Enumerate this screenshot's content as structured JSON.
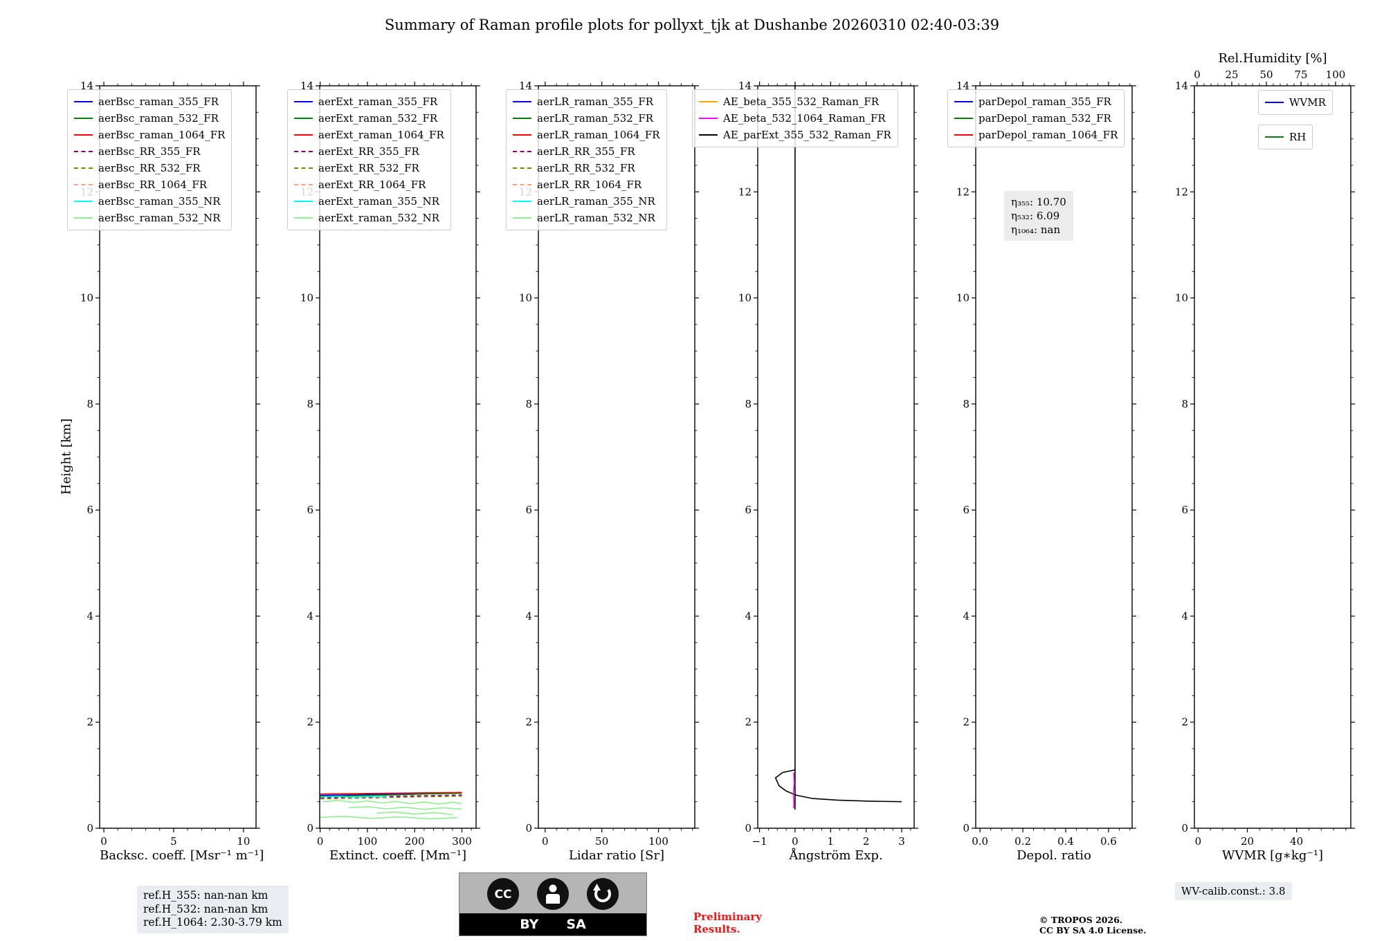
{
  "title": "Summary of Raman profile plots for pollyxt_tjk at Dushanbe 20260310 02:40-03:39",
  "footer": {
    "ref_lines": [
      "ref.H_355: nan-nan km",
      "ref.H_532: nan-nan km",
      "ref.H_1064: 2.30-3.79 km"
    ],
    "preliminary": [
      "Preliminary",
      "Results."
    ],
    "copyright": [
      "© TROPOS 2026.",
      "CC BY SA 4.0 License."
    ],
    "wv_calib": "WV-calib.const.: 3.8",
    "cc_badge": {
      "cc": "CC",
      "by": "BY",
      "sa": "SA"
    }
  },
  "chart_data": [
    {
      "name": "backscatter",
      "type": "line",
      "xlabel": "Backsc. coeff. [Msr⁻¹ m⁻¹]",
      "ylabel": "Height [km]",
      "xlim": [
        -0.3,
        10.9
      ],
      "ylim": [
        0,
        14
      ],
      "xticks": [
        0,
        5,
        10
      ],
      "xticklabels": [
        "0",
        "5",
        "10"
      ],
      "yticks": [
        0,
        2,
        4,
        6,
        8,
        10,
        12,
        14
      ],
      "yticklabels": [
        "0",
        "2",
        "4",
        "6",
        "8",
        "10",
        "12",
        "14"
      ],
      "xminor": 1,
      "yminor": 0.5,
      "legend": [
        {
          "label": "aerBsc_raman_355_FR",
          "color": "#0000ff",
          "dash": false
        },
        {
          "label": "aerBsc_raman_532_FR",
          "color": "#008000",
          "dash": false
        },
        {
          "label": "aerBsc_raman_1064_FR",
          "color": "#ff0000",
          "dash": false
        },
        {
          "label": "aerBsc_RR_355_FR",
          "color": "#800080",
          "dash": true
        },
        {
          "label": "aerBsc_RR_532_FR",
          "color": "#808000",
          "dash": true
        },
        {
          "label": "aerBsc_RR_1064_FR",
          "color": "#ffa07a",
          "dash": true
        },
        {
          "label": "aerBsc_raman_355_NR",
          "color": "#00ffff",
          "dash": false
        },
        {
          "label": "aerBsc_raman_532_NR",
          "color": "#90ee90",
          "dash": false
        }
      ],
      "series": []
    },
    {
      "name": "extinction",
      "type": "line",
      "xlabel": "Extinct. coeff. [Mm⁻¹]",
      "xlim": [
        -1,
        330
      ],
      "ylim": [
        0,
        14
      ],
      "xticks": [
        0,
        100,
        200,
        300
      ],
      "xticklabels": [
        "0",
        "100",
        "200",
        "300"
      ],
      "yticks": [
        0,
        2,
        4,
        6,
        8,
        10,
        12,
        14
      ],
      "yticklabels": [
        "0",
        "2",
        "4",
        "6",
        "8",
        "10",
        "12",
        "14"
      ],
      "xminor": 20,
      "yminor": 0.5,
      "legend": [
        {
          "label": "aerExt_raman_355_FR",
          "color": "#0000ff",
          "dash": false
        },
        {
          "label": "aerExt_raman_532_FR",
          "color": "#008000",
          "dash": false
        },
        {
          "label": "aerExt_raman_1064_FR",
          "color": "#ff0000",
          "dash": false
        },
        {
          "label": "aerExt_RR_355_FR",
          "color": "#800080",
          "dash": true
        },
        {
          "label": "aerExt_RR_532_FR",
          "color": "#808000",
          "dash": true
        },
        {
          "label": "aerExt_RR_1064_FR",
          "color": "#ffa07a",
          "dash": true
        },
        {
          "label": "aerExt_raman_355_NR",
          "color": "#00ffff",
          "dash": false
        },
        {
          "label": "aerExt_raman_532_NR",
          "color": "#90ee90",
          "dash": false
        }
      ],
      "series": [
        {
          "name": "aerExt_raman_355_FR",
          "color": "#0000ff",
          "dash": false,
          "points": [
            [
              0,
              0.62
            ],
            [
              75,
              0.63
            ],
            [
              150,
              0.645
            ],
            [
              225,
              0.655
            ],
            [
              300,
              0.67
            ]
          ]
        },
        {
          "name": "aerExt_raman_532_FR",
          "color": "#008000",
          "dash": false,
          "points": [
            [
              0,
              0.6
            ],
            [
              80,
              0.615
            ],
            [
              160,
              0.63
            ],
            [
              240,
              0.65
            ],
            [
              300,
              0.66
            ]
          ]
        },
        {
          "name": "aerExt_raman_1064_FR",
          "color": "#ff0000",
          "dash": false,
          "points": [
            [
              0,
              0.645
            ],
            [
              100,
              0.655
            ],
            [
              200,
              0.665
            ],
            [
              300,
              0.675
            ]
          ]
        },
        {
          "name": "aerExt_RR_355_FR",
          "color": "#800080",
          "dash": true,
          "points": [
            [
              0,
              0.575
            ],
            [
              100,
              0.59
            ],
            [
              200,
              0.61
            ],
            [
              300,
              0.625
            ]
          ]
        },
        {
          "name": "aerExt_RR_532_FR",
          "color": "#808000",
          "dash": true,
          "points": [
            [
              0,
              0.555
            ],
            [
              100,
              0.57
            ],
            [
              200,
              0.59
            ],
            [
              300,
              0.605
            ]
          ]
        },
        {
          "name": "aerExt_raman_355_NR",
          "color": "#00ffff",
          "dash": false,
          "points": [
            [
              0,
              0.59
            ],
            [
              35,
              0.6
            ],
            [
              70,
              0.585
            ],
            [
              110,
              0.6
            ],
            [
              140,
              0.59
            ]
          ]
        },
        {
          "name": "aerExt_raman_532_NR",
          "color": "#90ee90",
          "dash": false,
          "points": [
            [
              5,
              0.5
            ],
            [
              40,
              0.525
            ],
            [
              70,
              0.485
            ],
            [
              100,
              0.515
            ],
            [
              130,
              0.475
            ],
            [
              160,
              0.505
            ],
            [
              190,
              0.465
            ],
            [
              220,
              0.495
            ],
            [
              250,
              0.455
            ],
            [
              280,
              0.49
            ],
            [
              300,
              0.465
            ]
          ]
        },
        {
          "name": "aerExt_raman_532_NR",
          "color": "#90ee90",
          "dash": false,
          "points": [
            [
              60,
              0.385
            ],
            [
              100,
              0.405
            ],
            [
              140,
              0.365
            ],
            [
              180,
              0.395
            ],
            [
              220,
              0.355
            ],
            [
              260,
              0.385
            ],
            [
              300,
              0.36
            ]
          ]
        },
        {
          "name": "aerExt_raman_532_NR",
          "color": "#90ee90",
          "dash": false,
          "points": [
            [
              120,
              0.285
            ],
            [
              160,
              0.305
            ],
            [
              200,
              0.265
            ],
            [
              240,
              0.295
            ],
            [
              280,
              0.255
            ]
          ]
        },
        {
          "name": "aerExt_raman_532_NR",
          "color": "#90ee90",
          "dash": false,
          "points": [
            [
              0,
              0.205
            ],
            [
              50,
              0.225
            ],
            [
              110,
              0.185
            ],
            [
              170,
              0.215
            ],
            [
              230,
              0.175
            ],
            [
              290,
              0.2
            ]
          ]
        }
      ]
    },
    {
      "name": "lidar_ratio",
      "type": "line",
      "xlabel": "Lidar ratio [Sr]",
      "xlim": [
        -6,
        132
      ],
      "ylim": [
        0,
        14
      ],
      "xticks": [
        0,
        50,
        100
      ],
      "xticklabels": [
        "0",
        "50",
        "100"
      ],
      "yticks": [
        0,
        2,
        4,
        6,
        8,
        10,
        12,
        14
      ],
      "yticklabels": [
        "0",
        "2",
        "4",
        "6",
        "8",
        "10",
        "12",
        "14"
      ],
      "xminor": 10,
      "yminor": 0.5,
      "legend": [
        {
          "label": "aerLR_raman_355_FR",
          "color": "#0000ff",
          "dash": false
        },
        {
          "label": "aerLR_raman_532_FR",
          "color": "#008000",
          "dash": false
        },
        {
          "label": "aerLR_raman_1064_FR",
          "color": "#ff0000",
          "dash": false
        },
        {
          "label": "aerLR_RR_355_FR",
          "color": "#800080",
          "dash": true
        },
        {
          "label": "aerLR_RR_532_FR",
          "color": "#808000",
          "dash": true
        },
        {
          "label": "aerLR_RR_1064_FR",
          "color": "#ffa07a",
          "dash": true
        },
        {
          "label": "aerLR_raman_355_NR",
          "color": "#00ffff",
          "dash": false
        },
        {
          "label": "aerLR_raman_532_NR",
          "color": "#90ee90",
          "dash": false
        }
      ],
      "series": []
    },
    {
      "name": "angstrom",
      "type": "line",
      "xlabel": "Ångström Exp.",
      "xlim": [
        -1.05,
        3.35
      ],
      "ylim": [
        0,
        14
      ],
      "xticks": [
        -1,
        0,
        1,
        2,
        3
      ],
      "xticklabels": [
        "−1",
        "0",
        "1",
        "2",
        "3"
      ],
      "yticks": [
        0,
        2,
        4,
        6,
        8,
        10,
        12,
        14
      ],
      "yticklabels": [
        "0",
        "2",
        "4",
        "6",
        "8",
        "10",
        "12",
        "14"
      ],
      "xminor": 0.25,
      "yminor": 0.5,
      "legend": [
        {
          "label": "AE_beta_355_532_Raman_FR",
          "color": "#ffa500",
          "dash": false
        },
        {
          "label": "AE_beta_532_1064_Raman_FR",
          "color": "#ff00ff",
          "dash": false
        },
        {
          "label": "AE_parExt_355_532_Raman_FR",
          "color": "#000000",
          "dash": false
        }
      ],
      "series": [
        {
          "name": "AE_parExt_355_532_Raman_FR",
          "color": "#000000",
          "dash": false,
          "points": [
            [
              0,
              14
            ],
            [
              0,
              0.35
            ]
          ]
        },
        {
          "name": "AE_parExt_355_532_Raman_FR",
          "color": "#000000",
          "dash": false,
          "points": [
            [
              0,
              1.1
            ],
            [
              -0.35,
              1.05
            ],
            [
              -0.55,
              0.95
            ],
            [
              -0.45,
              0.8
            ],
            [
              -0.25,
              0.7
            ],
            [
              0.05,
              0.62
            ],
            [
              0.5,
              0.56
            ],
            [
              1.2,
              0.53
            ],
            [
              2.1,
              0.51
            ],
            [
              3.0,
              0.5
            ]
          ]
        },
        {
          "name": "AE_beta_532_1064_Raman_FR",
          "color": "#ff00ff",
          "dash": false,
          "points": [
            [
              -0.04,
              1.05
            ],
            [
              -0.02,
              0.85
            ],
            [
              -0.05,
              0.65
            ],
            [
              -0.03,
              0.45
            ],
            [
              -0.05,
              0.38
            ]
          ]
        }
      ]
    },
    {
      "name": "depol",
      "type": "line",
      "xlabel": "Depol. ratio",
      "xlim": [
        -0.02,
        0.71
      ],
      "ylim": [
        0,
        14
      ],
      "xticks": [
        0,
        0.2,
        0.4,
        0.6
      ],
      "xticklabels": [
        "0.0",
        "0.2",
        "0.4",
        "0.6"
      ],
      "yticks": [
        0,
        2,
        4,
        6,
        8,
        10,
        12,
        14
      ],
      "yticklabels": [
        "0",
        "2",
        "4",
        "6",
        "8",
        "10",
        "12",
        "14"
      ],
      "xminor": 0.05,
      "yminor": 0.5,
      "annotation_lines": [
        "η₃₅₅: 10.70",
        "η₅₃₂: 6.09",
        "η₁₀₆₄: nan"
      ],
      "legend": [
        {
          "label": "parDepol_raman_355_FR",
          "color": "#0000ff",
          "dash": false
        },
        {
          "label": "parDepol_raman_532_FR",
          "color": "#008000",
          "dash": false
        },
        {
          "label": "parDepol_raman_1064_FR",
          "color": "#ff0000",
          "dash": false
        }
      ],
      "series": []
    },
    {
      "name": "wvmr",
      "type": "line",
      "xlabel": "WVMR [g∗kg⁻¹]",
      "xlim": [
        -1.5,
        62
      ],
      "ylim": [
        0,
        14
      ],
      "xticks": [
        0,
        20,
        40
      ],
      "xticklabels": [
        "0",
        "20",
        "40"
      ],
      "yticks": [
        0,
        2,
        4,
        6,
        8,
        10,
        12,
        14
      ],
      "yticklabels": [
        "0",
        "2",
        "4",
        "6",
        "8",
        "10",
        "12",
        "14"
      ],
      "xminor": 5,
      "yminor": 0.5,
      "top_axis": {
        "label": "Rel.Humidity [%]",
        "lim": [
          -2,
          111
        ],
        "ticks": [
          0,
          25,
          50,
          75,
          100
        ],
        "ticklabels": [
          "0",
          "25",
          "50",
          "75",
          "100"
        ],
        "minor": 5
      },
      "legend_split_right": true,
      "legend": [
        {
          "label": "WVMR",
          "color": "#0000ff",
          "dash": false
        },
        {
          "label": "RH",
          "color": "#008000",
          "dash": false
        }
      ],
      "series": []
    }
  ]
}
